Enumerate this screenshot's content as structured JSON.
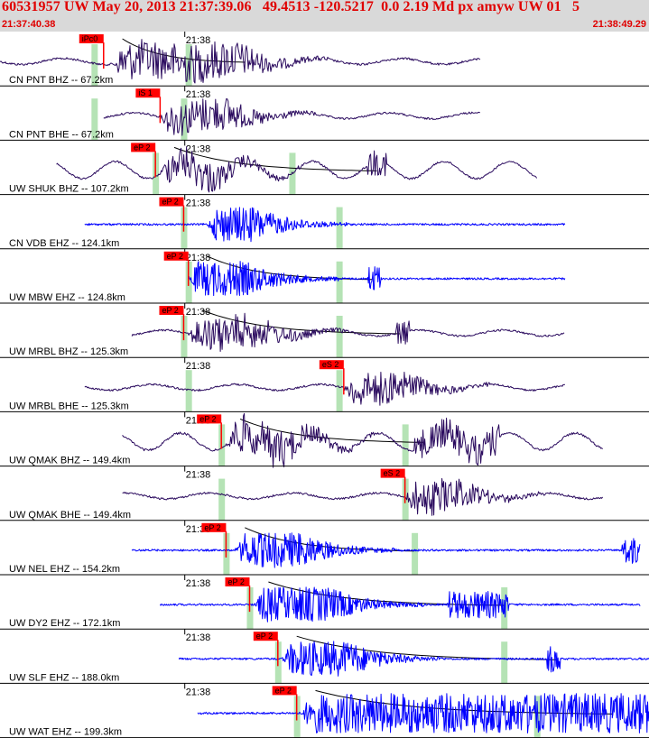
{
  "header": {
    "title": "60531957 UW May 20, 2013 21:37:39.06   49.4513 -120.5217  0.0 2.19 Md px amyw UW 01   5",
    "start_time": "21:37:40.38",
    "end_time": "21:38:49.29"
  },
  "colors": {
    "header_bg": "#d9d9d9",
    "header_text": "#e00000",
    "broadband_trace": "#2a0a5e",
    "shortperiod_trace": "#0000ff",
    "pick": "#ff0000",
    "window_bar": "#b5e3b5",
    "coda_curve": "#000000"
  },
  "chart_data": {
    "type": "line",
    "minute_mark": "21:38",
    "traces": [
      {
        "label": "CN PNT BHZ -- 67.2km",
        "kind": "broadband",
        "start": 0,
        "end": 51,
        "pick": "iPc0",
        "pick_t": 11,
        "bars": [
          10,
          20
        ],
        "amp": 0.9,
        "burst": [
          12,
          25
        ],
        "tail": [
          24,
          27
        ],
        "coda": true,
        "coda_to": 26
      },
      {
        "label": "CN PNT BHE -- 67.2km",
        "kind": "broadband",
        "start": 11,
        "end": 51,
        "pick": "iS 1",
        "pick_t": 17,
        "bars": [
          10,
          19.5
        ],
        "amp": 0.8,
        "burst": [
          17,
          24
        ],
        "tail": null,
        "coda": false
      },
      {
        "label": "UW SHUK BHZ -- 107.2km",
        "kind": "broadband",
        "start": 6,
        "end": 57,
        "pick": "eP 2",
        "pick_t": 16.5,
        "bars": [
          16.5,
          31
        ],
        "amp": 0.8,
        "burst": [
          17,
          22
        ],
        "tail": [
          39,
          41
        ],
        "coda": true,
        "coda_to": 40,
        "wave": true
      },
      {
        "label": "CN VDB EHZ -- 124.1km",
        "kind": "shortperiod",
        "start": 9,
        "end": 60,
        "pick": "eP 2",
        "pick_t": 19.5,
        "bars": [
          19.5,
          36
        ],
        "amp": 0.8,
        "burst": [
          22,
          27
        ],
        "tail": null,
        "coda": false
      },
      {
        "label": "UW MBW EHZ -- 124.8km",
        "kind": "shortperiod",
        "start": 20,
        "end": 60,
        "pick": "eP 2",
        "pick_t": 20,
        "bars": [
          20,
          36
        ],
        "amp": 0.8,
        "burst": [
          20,
          26
        ],
        "tail": [
          39,
          40.5
        ],
        "coda": true,
        "coda_to": 39.5
      },
      {
        "label": "UW MRBL BHZ -- 125.3km",
        "kind": "broadband",
        "start": 14,
        "end": 60,
        "pick": "eP 2",
        "pick_t": 19.5,
        "bars": [
          19.5,
          36
        ],
        "amp": 0.8,
        "burst": [
          20,
          27
        ],
        "tail": [
          42,
          43.5
        ],
        "coda": true,
        "coda_to": 42.5
      },
      {
        "label": "UW MRBL BHE -- 125.3km",
        "kind": "broadband",
        "start": 9,
        "end": 60,
        "pick": "eS 2",
        "pick_t": 36.5,
        "bars": [
          20,
          36
        ],
        "amp": 0.8,
        "burst": [
          36.5,
          42
        ],
        "tail": null,
        "coda": false
      },
      {
        "label": "UW QMAK BHZ -- 149.4km",
        "kind": "broadband",
        "start": 13,
        "end": 64,
        "pick": "eP 2",
        "pick_t": 23.5,
        "bars": [
          23.5,
          43
        ],
        "amp": 0.9,
        "burst": [
          24,
          30
        ],
        "tail": [
          44,
          53
        ],
        "coda": true,
        "coda_to": 45,
        "wave": true
      },
      {
        "label": "UW QMAK BHE -- 149.4km",
        "kind": "broadband",
        "start": 13,
        "end": 64,
        "pick": "eS 2",
        "pick_t": 43,
        "bars": [
          23.5,
          43
        ],
        "amp": 0.8,
        "burst": [
          43,
          48
        ],
        "tail": null,
        "coda": false
      },
      {
        "label": "UW NEL EHZ -- 154.2km",
        "kind": "shortperiod",
        "start": 14,
        "end": 68,
        "pick": "eP 2",
        "pick_t": 24,
        "bars": [
          24,
          44
        ],
        "amp": 0.8,
        "burst": [
          25,
          32
        ],
        "tail": [
          66,
          68
        ],
        "coda": true,
        "coda_to": 44
      },
      {
        "label": "UW DY2 EHZ -- 172.1km",
        "kind": "shortperiod",
        "start": 17,
        "end": 68,
        "pick": "eP 2",
        "pick_t": 26.5,
        "bars": [
          26.5,
          53.5
        ],
        "amp": 0.8,
        "burst": [
          27,
          35
        ],
        "tail": [
          47.5,
          54
        ],
        "coda": true,
        "coda_to": 53.5
      },
      {
        "label": "UW SLF EHZ -- 188.0km",
        "kind": "shortperiod",
        "start": 19,
        "end": 70,
        "pick": "eP 2",
        "pick_t": 29.5,
        "bars": [
          29.5,
          53.5
        ],
        "amp": 0.8,
        "burst": [
          30,
          37
        ],
        "tail": [
          58,
          59.5
        ],
        "coda": true,
        "coda_to": 59
      },
      {
        "label": "UW WAT EHZ -- 199.3km",
        "kind": "shortperiod",
        "start": 21,
        "end": 72,
        "pick": "eP 2",
        "pick_t": 31.5,
        "bars": [
          31.5,
          57
        ],
        "amp": 0.9,
        "burst": [
          32,
          72
        ],
        "tail": [
          64,
          65
        ],
        "coda": true,
        "coda_to": 65
      }
    ]
  }
}
